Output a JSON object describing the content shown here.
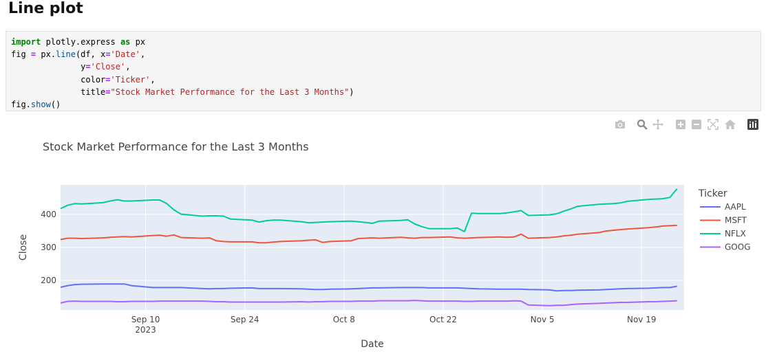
{
  "heading": "Line plot",
  "code": {
    "lines": [
      [
        [
          "kw",
          "import"
        ],
        [
          "t",
          " plotly.express "
        ],
        [
          "kw",
          "as"
        ],
        [
          "t",
          " px"
        ]
      ],
      [
        [
          "t",
          "fig "
        ],
        [
          "op",
          "="
        ],
        [
          "t",
          " px."
        ],
        [
          "fn",
          "line"
        ],
        [
          "t",
          "(df, x"
        ],
        [
          "op",
          "="
        ],
        [
          "str",
          "'Date'"
        ],
        [
          "t",
          ","
        ]
      ],
      [
        [
          "t",
          "              y"
        ],
        [
          "op",
          "="
        ],
        [
          "str",
          "'Close'"
        ],
        [
          "t",
          ","
        ]
      ],
      [
        [
          "t",
          "              color"
        ],
        [
          "op",
          "="
        ],
        [
          "str",
          "'Ticker'"
        ],
        [
          "t",
          ","
        ]
      ],
      [
        [
          "t",
          "              title"
        ],
        [
          "op",
          "="
        ],
        [
          "str",
          "\"Stock Market Performance for the Last 3 Months\""
        ],
        [
          "t",
          ")"
        ]
      ],
      [
        [
          "t",
          "fig."
        ],
        [
          "fn",
          "show"
        ],
        [
          "t",
          "()"
        ]
      ]
    ]
  },
  "modebar": {
    "buttons": [
      {
        "name": "camera-icon",
        "title": "Download plot as a png"
      },
      {
        "name": "zoom-icon",
        "title": "Zoom"
      },
      {
        "name": "pan-icon",
        "title": "Pan"
      },
      {
        "name": "zoom-in-icon",
        "title": "Zoom in"
      },
      {
        "name": "zoom-out-icon",
        "title": "Zoom out"
      },
      {
        "name": "autoscale-icon",
        "title": "Autoscale"
      },
      {
        "name": "home-icon",
        "title": "Reset axes"
      },
      {
        "name": "plotly-logo-icon",
        "title": "Produced with Plotly"
      }
    ]
  },
  "chart_data": {
    "type": "line",
    "title": "Stock Market Performance for the Last 3 Months",
    "xlabel": "Date",
    "ylabel": "Close",
    "legend_title": "Ticker",
    "legend_position": "right",
    "ylim": [
      110,
      490
    ],
    "x_start": "2023-08-29",
    "x_days": [
      0,
      1,
      2,
      3,
      6,
      7,
      8,
      9,
      10,
      13,
      14,
      15,
      16,
      17,
      20,
      21,
      22,
      23,
      24,
      27,
      28,
      29,
      30,
      31,
      34,
      35,
      36,
      37,
      38,
      41,
      42,
      43,
      44,
      45,
      48,
      49,
      50,
      51,
      52,
      55,
      56,
      57,
      58,
      59,
      62,
      63,
      64,
      65,
      66,
      69,
      70,
      71,
      72,
      73,
      76,
      77,
      78,
      79,
      80,
      83,
      84,
      85,
      86,
      87
    ],
    "x_range_days": [
      0,
      88
    ],
    "x_ticks": [
      {
        "day": 12,
        "label": "Sep 10",
        "sub": "2023"
      },
      {
        "day": 26,
        "label": "Sep 24",
        "sub": ""
      },
      {
        "day": 40,
        "label": "Oct 8",
        "sub": ""
      },
      {
        "day": 54,
        "label": "Oct 22",
        "sub": ""
      },
      {
        "day": 68,
        "label": "Nov 5",
        "sub": ""
      },
      {
        "day": 82,
        "label": "Nov 19",
        "sub": ""
      }
    ],
    "y_ticks": [
      200,
      300,
      400
    ],
    "series": [
      {
        "name": "AAPL",
        "color": "#636efa",
        "values": [
          179,
          184,
          187,
          188,
          189,
          189,
          189,
          189,
          184,
          178,
          178,
          178,
          178,
          178,
          175,
          174,
          175,
          175,
          176,
          177,
          175,
          175,
          175,
          175,
          174,
          173,
          172,
          172,
          173,
          174,
          175,
          176,
          177,
          177,
          178,
          178,
          178,
          178,
          177,
          177,
          177,
          176,
          175,
          174,
          173,
          173,
          173,
          173,
          172,
          171,
          168,
          169,
          169,
          170,
          171,
          172,
          173,
          174,
          175,
          176,
          177,
          178,
          178,
          182
        ]
      },
      {
        "name": "MSFT",
        "color": "#ef553b",
        "values": [
          324,
          328,
          328,
          327,
          329,
          331,
          332,
          333,
          332,
          336,
          337,
          334,
          338,
          330,
          328,
          329,
          320,
          318,
          317,
          317,
          314,
          314,
          316,
          318,
          320,
          322,
          323,
          315,
          318,
          320,
          327,
          328,
          329,
          328,
          331,
          329,
          328,
          330,
          330,
          332,
          329,
          328,
          329,
          330,
          332,
          331,
          332,
          340,
          328,
          330,
          332,
          335,
          337,
          340,
          345,
          350,
          352,
          354,
          356,
          360,
          362,
          365,
          366,
          367
        ]
      },
      {
        "name": "NFLX",
        "color": "#00cc96",
        "values": [
          418,
          428,
          433,
          432,
          436,
          441,
          445,
          441,
          441,
          444,
          444,
          433,
          414,
          401,
          395,
          396,
          396,
          395,
          386,
          383,
          377,
          381,
          383,
          383,
          378,
          375,
          376,
          377,
          378,
          380,
          378,
          376,
          373,
          380,
          382,
          384,
          371,
          363,
          357,
          357,
          359,
          348,
          404,
          403,
          403,
          405,
          408,
          412,
          397,
          399,
          402,
          410,
          417,
          425,
          431,
          432,
          433,
          435,
          440,
          446,
          447,
          448,
          452,
          478
        ]
      },
      {
        "name": "GOOG",
        "color": "#ab63fa",
        "values": [
          131,
          136,
          137,
          136,
          136,
          136,
          135,
          135,
          136,
          136,
          137,
          137,
          137,
          137,
          137,
          136,
          135,
          135,
          134,
          134,
          134,
          134,
          134,
          134,
          135,
          134,
          135,
          135,
          136,
          136,
          137,
          137,
          137,
          138,
          138,
          138,
          139,
          138,
          137,
          137,
          137,
          136,
          136,
          137,
          137,
          137,
          138,
          137,
          125,
          123,
          124,
          124,
          126,
          128,
          130,
          131,
          132,
          133,
          133,
          135,
          135,
          136,
          137,
          138
        ]
      }
    ]
  }
}
